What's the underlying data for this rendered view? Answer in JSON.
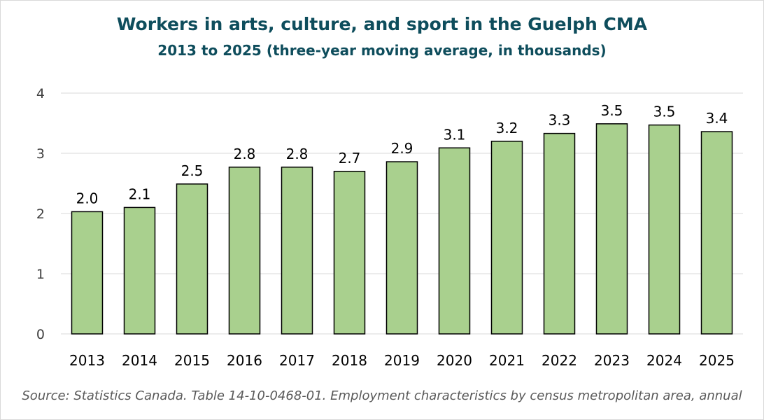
{
  "chart_data": {
    "type": "bar",
    "title": "Workers in arts, culture, and sport in the Guelph CMA",
    "subtitle": "2013 to 2025 (three-year moving average, in thousands)",
    "categories": [
      "2013",
      "2014",
      "2015",
      "2016",
      "2017",
      "2018",
      "2019",
      "2020",
      "2021",
      "2022",
      "2023",
      "2024",
      "2025"
    ],
    "values": [
      2.03,
      2.1,
      2.49,
      2.77,
      2.77,
      2.7,
      2.86,
      3.09,
      3.2,
      3.33,
      3.49,
      3.47,
      3.36
    ],
    "data_labels": [
      "2.0",
      "2.1",
      "2.5",
      "2.8",
      "2.8",
      "2.7",
      "2.9",
      "3.1",
      "3.2",
      "3.3",
      "3.5",
      "3.5",
      "3.4"
    ],
    "yticks": [
      "0",
      "1",
      "2",
      "3",
      "4"
    ],
    "ylim": [
      0,
      4
    ],
    "grid": true,
    "legend": "none",
    "colors": {
      "bar_fill": "#a9d08e",
      "bar_stroke": "#000000",
      "title": "#0e4d5c",
      "grid": "#d9d9d9"
    }
  },
  "source": "Source: Statistics Canada. Table 14-10-0468-01. Employment characteristics by census metropolitan area, annual"
}
